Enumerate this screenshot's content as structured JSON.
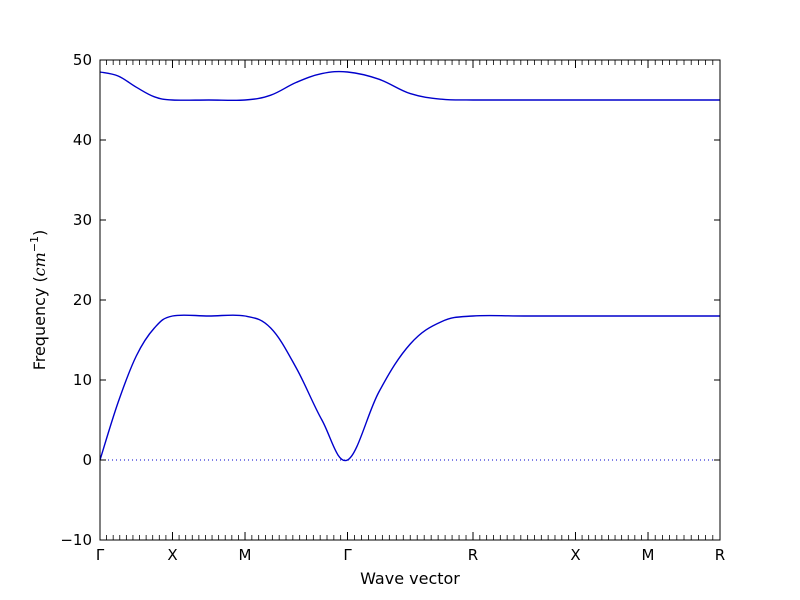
{
  "chart_data": {
    "type": "line",
    "title": "",
    "xlabel": "Wave vector",
    "ylabel_main": "Frequency (",
    "ylabel_unit": "cm",
    "ylabel_exp": "−1",
    "ylabel_close": ")",
    "ylim": [
      -10,
      50
    ],
    "yticks": [
      -10,
      0,
      10,
      20,
      30,
      40,
      50
    ],
    "ytick_labels": [
      "−10",
      "0",
      "10",
      "20",
      "30",
      "40",
      "50"
    ],
    "xlim": [
      0,
      1
    ],
    "xticks": [
      {
        "label": "Γ",
        "pos": 0.0
      },
      {
        "label": "X",
        "pos": 0.1169
      },
      {
        "label": "M",
        "pos": 0.2339
      },
      {
        "label": "Γ",
        "pos": 0.3992
      },
      {
        "label": "R",
        "pos": 0.6016
      },
      {
        "label": "X",
        "pos": 0.7669
      },
      {
        "label": "M",
        "pos": 0.8839
      },
      {
        "label": "R",
        "pos": 1.0
      }
    ],
    "zero_line": {
      "y": 0,
      "style": "dotted"
    },
    "grid": false,
    "series": [
      {
        "color": "#0000cc",
        "x": [
          0.0,
          0.0292,
          0.0585,
          0.0877,
          0.1169,
          0.1754,
          0.2339,
          0.2753,
          0.3166,
          0.3579,
          0.3992,
          0.4498,
          0.5004,
          0.551,
          0.6016,
          0.6843,
          0.7669,
          0.8254,
          0.8839,
          1.0
        ],
        "y": [
          0,
          7.2,
          13.0,
          16.5,
          18.0,
          18.0,
          18.0,
          16.5,
          11.5,
          5.0,
          0,
          8.5,
          14.5,
          17.3,
          18.0,
          18.0,
          18.0,
          18.0,
          18.0,
          18.0
        ]
      },
      {
        "color": "#0000cc",
        "x": [
          0.0,
          0.0292,
          0.0585,
          0.0877,
          0.1169,
          0.1754,
          0.2339,
          0.2753,
          0.3166,
          0.3579,
          0.3992,
          0.4498,
          0.5004,
          0.551,
          0.6016,
          0.6843,
          0.7669,
          0.8254,
          0.8839,
          1.0
        ],
        "y": [
          48.5,
          48.0,
          46.6,
          45.4,
          45.0,
          45.0,
          45.0,
          45.6,
          47.2,
          48.3,
          48.5,
          47.6,
          45.8,
          45.1,
          45.0,
          45.0,
          45.0,
          45.0,
          45.0,
          45.0
        ]
      }
    ]
  }
}
